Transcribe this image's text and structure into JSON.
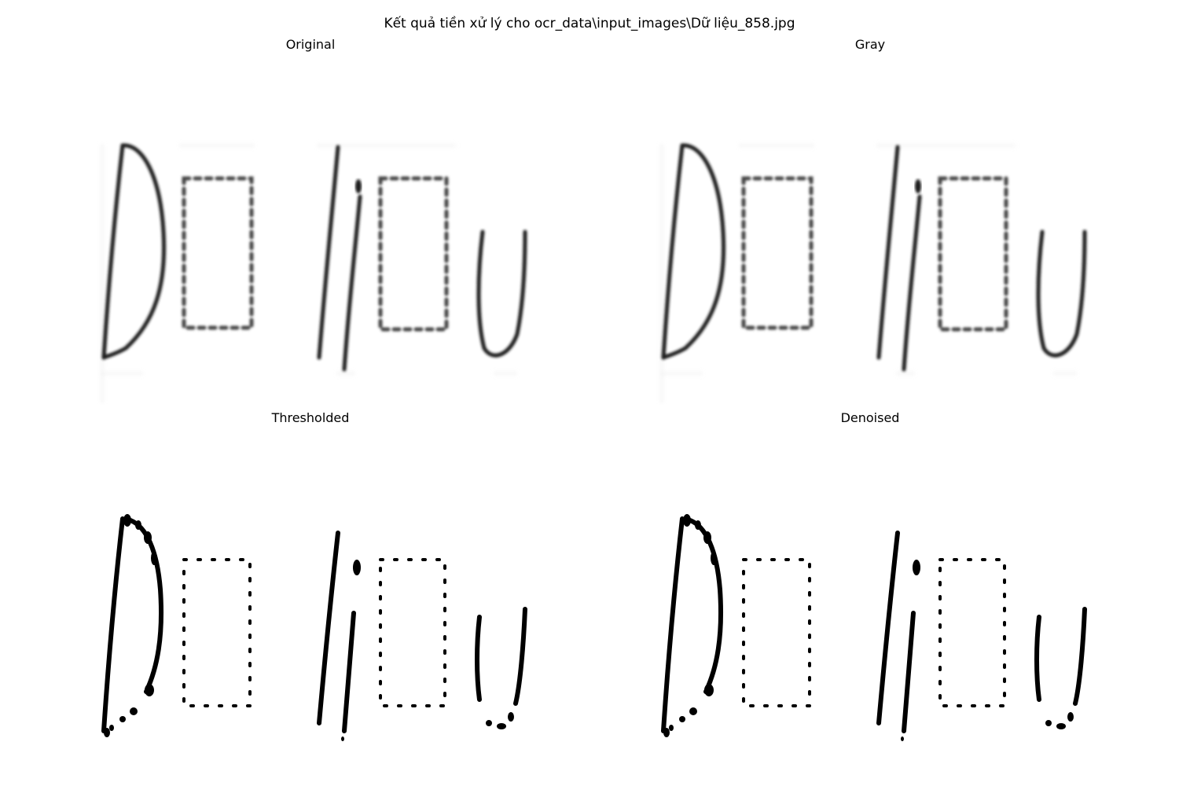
{
  "figure": {
    "title": "Kết quả tiền xử lý cho ocr_data\\input_images\\Dữ liệu_858.jpg"
  },
  "panels": [
    {
      "title": "Original"
    },
    {
      "title": "Gray"
    },
    {
      "title": "Thresholded"
    },
    {
      "title": "Denoised"
    }
  ]
}
